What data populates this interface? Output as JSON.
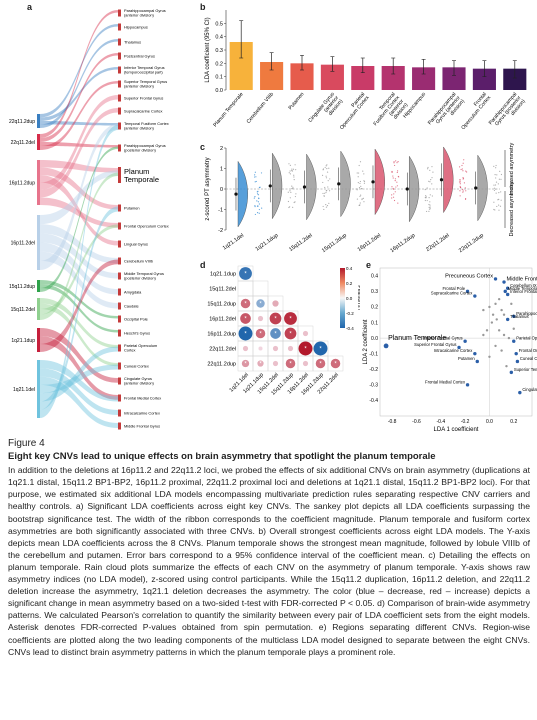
{
  "panels": {
    "a": "a",
    "b": "b",
    "c": "c",
    "d": "d",
    "e": "e"
  },
  "sankey": {
    "left_nodes": [
      {
        "label": "22q11.2dup",
        "color": "#3a7fc1",
        "y0": 114,
        "y1": 128
      },
      {
        "label": "22q11.2del",
        "color": "#d62d4a",
        "y0": 134,
        "y1": 150
      },
      {
        "label": "16p11.2dup",
        "color": "#e7748c",
        "y0": 160,
        "y1": 205
      },
      {
        "label": "16p11.2del",
        "color": "#b8d0e8",
        "y0": 215,
        "y1": 270
      },
      {
        "label": "15q11.2dup",
        "color": "#2ea24a",
        "y0": 280,
        "y1": 292
      },
      {
        "label": "15q11.2del",
        "color": "#8fd08f",
        "y0": 298,
        "y1": 320
      },
      {
        "label": "1q21.1dup",
        "color": "#c61f3c",
        "y0": 328,
        "y1": 352
      },
      {
        "label": "1q21.1del",
        "color": "#6fc3de",
        "y0": 360,
        "y1": 418
      }
    ],
    "right_nodes": [
      {
        "label": "Parahippocampal Gyrus (anterior division)",
        "y": 13,
        "big": false
      },
      {
        "label": "Hippocampus",
        "y": 27,
        "big": false
      },
      {
        "label": "Thalamus",
        "y": 42,
        "big": false
      },
      {
        "label": "Postcentral Gyrus",
        "y": 56,
        "big": false
      },
      {
        "label": "Inferior Temporal Gyrus (temporooccipital part)",
        "y": 70,
        "big": false
      },
      {
        "label": "Superior Temporal Gyrus (anterior division)",
        "y": 84,
        "big": false
      },
      {
        "label": "Superior Frontal Gyrus",
        "y": 98,
        "big": false
      },
      {
        "label": "Supracalcarine Cortex",
        "y": 111,
        "big": false
      },
      {
        "label": "Temporal Fusiform Cortex (anterior division)",
        "y": 126,
        "big": false
      },
      {
        "label": "Parahippocampal Gyrus (posterior division)",
        "y": 148,
        "big": false
      },
      {
        "label": "Planum Temporale",
        "y": 175,
        "big": true
      },
      {
        "label": "Putamen",
        "y": 208,
        "big": false
      },
      {
        "label": "Frontal Operculum Cortex",
        "y": 226,
        "big": false
      },
      {
        "label": "Lingual Gyrus",
        "y": 244,
        "big": false
      },
      {
        "label": "Cerebellum VIIIb",
        "y": 261,
        "big": false
      },
      {
        "label": "Middle Temporal Gyrus (posterior division)",
        "y": 276,
        "big": false
      },
      {
        "label": "Amygdala",
        "y": 292,
        "big": false
      },
      {
        "label": "Caudate",
        "y": 306,
        "big": false
      },
      {
        "label": "Occipital Pole",
        "y": 319,
        "big": false
      },
      {
        "label": "Heschl's Gyrus",
        "y": 333,
        "big": false
      },
      {
        "label": "Parietal Operculum Cortex",
        "y": 348,
        "big": false
      },
      {
        "label": "Cuneal Cortex",
        "y": 366,
        "big": false
      },
      {
        "label": "Cingulate Gyrus (anterior division)",
        "y": 381,
        "big": false
      },
      {
        "label": "Frontal Medial Cortex",
        "y": 398,
        "big": false
      },
      {
        "label": "Intracalcarine Cortex",
        "y": 413,
        "big": false
      },
      {
        "label": "Middle Frontal Gyrus",
        "y": 426,
        "big": false
      }
    ]
  },
  "bar_chart": {
    "chart_data": {
      "type": "bar",
      "ylabel": "LDA coefficient (95% CI)",
      "ylim": [
        0,
        0.6
      ],
      "yticks": [
        "0.0",
        "0.1",
        "0.2",
        "0.3",
        "0.4",
        "0.5"
      ],
      "categories": [
        "Planum Temporale",
        "Cerebellum VIIIb",
        "Putamen",
        "Cingulate Gyrus (anterior division)",
        "Parietal Operculum Cortex",
        "Temporal Fusiform Cortex (anterior division)",
        "Hippocampus",
        "Parahippocampal Gyrus (anterior division)",
        "Frontal Operculum Cortex",
        "Parahippocampal Gyrus (posterior division)"
      ],
      "values": [
        0.36,
        0.21,
        0.2,
        0.19,
        0.18,
        0.18,
        0.17,
        0.17,
        0.16,
        0.16
      ],
      "ci_low": [
        0.24,
        0.15,
        0.15,
        0.14,
        0.13,
        0.12,
        0.12,
        0.11,
        0.1,
        0.09
      ],
      "ci_high": [
        0.52,
        0.28,
        0.26,
        0.25,
        0.24,
        0.24,
        0.23,
        0.22,
        0.22,
        0.22
      ],
      "colors": [
        "#f7b23b",
        "#ef7a3f",
        "#e65c4c",
        "#d94a5e",
        "#c93b68",
        "#b4336e",
        "#9a2c72",
        "#7c2572",
        "#5b1e6a",
        "#2e154d"
      ]
    }
  },
  "rain_chart": {
    "chart_data": {
      "type": "scatter",
      "ylabel": "z-scored PT asymmetry",
      "ylim": [
        -2,
        2
      ],
      "yticks": [
        "-2",
        "-1",
        "0",
        "1",
        "2"
      ],
      "categories": [
        "1q21.1del",
        "1q21.1dup",
        "15q11.2del",
        "15q11.2dup",
        "16p11.2del",
        "16p11.2dup",
        "22q11.2del",
        "22q11.2dup"
      ],
      "means": [
        -0.25,
        0.15,
        0.1,
        0.25,
        0.35,
        0.0,
        0.45,
        0.05
      ],
      "highlight": [
        "#3a8ed4",
        "#9a9a9a",
        "#9a9a9a",
        "#9a9a9a",
        "#d9566e",
        "#9a9a9a",
        "#d9566e",
        "#9a9a9a"
      ],
      "increased_label": "Increased asymmetry",
      "decreased_label": "Decreased asymmetry"
    }
  },
  "corr_chart": {
    "chart_data": {
      "type": "heatmap",
      "labels": [
        "1q21.1dup",
        "15q11.2del",
        "15q11.2dup",
        "16p11.2del",
        "16p11.2dup",
        "22q11.2del",
        "22q11.2dup"
      ],
      "xlabels": [
        "1q21.1del",
        "1q21.1dup",
        "15q11.2del",
        "15q11.2dup",
        "16p11.2del",
        "16p11.2dup",
        "22q11.2del"
      ],
      "values": [
        [
          -0.45,
          null,
          null,
          null,
          null,
          null,
          null
        ],
        [
          null,
          null,
          null,
          null,
          null,
          null,
          null
        ],
        [
          0.3,
          -0.25,
          0.15,
          null,
          null,
          null,
          null
        ],
        [
          0.35,
          0.1,
          0.4,
          0.45,
          null,
          null,
          null
        ],
        [
          -0.5,
          0.3,
          -0.35,
          0.4,
          0.1,
          null,
          null
        ],
        [
          0.1,
          0.05,
          0.1,
          0.1,
          0.5,
          -0.5,
          null
        ],
        [
          0.2,
          0.15,
          0.1,
          0.3,
          0.1,
          0.3,
          0.3
        ]
      ],
      "stars": [
        [
          true,
          false,
          false,
          false,
          false,
          false,
          false
        ],
        [
          false,
          false,
          false,
          false,
          false,
          false,
          false
        ],
        [
          true,
          true,
          false,
          false,
          false,
          false,
          false
        ],
        [
          true,
          false,
          true,
          true,
          false,
          false,
          false
        ],
        [
          true,
          true,
          true,
          true,
          false,
          false,
          false
        ],
        [
          false,
          false,
          false,
          false,
          true,
          true,
          false
        ],
        [
          true,
          true,
          false,
          true,
          false,
          true,
          true
        ]
      ],
      "legend_title": "Pearson's r",
      "legend_ticks": [
        "0.4",
        "0.2",
        "0.0",
        "-0.2",
        "-0.4"
      ]
    }
  },
  "scatter_chart": {
    "chart_data": {
      "type": "scatter",
      "xlabel": "LDA 1 coefficient",
      "ylabel": "LDA 2 coefficient",
      "xlim": [
        -0.9,
        0.35
      ],
      "ylim": [
        -0.5,
        0.45
      ],
      "xticks": [
        "-0.8",
        "-0.6",
        "-0.4",
        "-0.2",
        "0.0",
        "0.2"
      ],
      "yticks": [
        "0.4",
        "0.3",
        "0.2",
        "0.1",
        "0.0",
        "-0.1",
        "-0.2",
        "-0.3",
        "-0.4"
      ],
      "points": [
        {
          "x": 0.05,
          "y": 0.38,
          "label": "Precuneous Cortex"
        },
        {
          "x": 0.12,
          "y": 0.36,
          "label": "Middle Frontal Gyrus"
        },
        {
          "x": 0.15,
          "y": 0.32,
          "label": "Cerebellum IX"
        },
        {
          "x": 0.13,
          "y": 0.3,
          "label": "Middle Temporal Gyrus"
        },
        {
          "x": 0.15,
          "y": 0.28,
          "label": "Inferior Frontal Gyrus"
        },
        {
          "x": -0.18,
          "y": 0.3,
          "label": "Frontal Pole"
        },
        {
          "x": -0.12,
          "y": 0.27,
          "label": "Supracalcarine Cortex"
        },
        {
          "x": 0.2,
          "y": 0.14,
          "label": "Parahippocampal Gyrus"
        },
        {
          "x": 0.15,
          "y": 0.12,
          "label": "Thalamus"
        },
        {
          "x": -0.2,
          "y": -0.02,
          "label": "Interior Frontal Gyrus"
        },
        {
          "x": -0.85,
          "y": -0.05,
          "label": "Planum Temporale"
        },
        {
          "x": -0.25,
          "y": -0.06,
          "label": "Superior Frontal Gyrus"
        },
        {
          "x": -0.12,
          "y": -0.1,
          "label": "Intracalcarine Cortex"
        },
        {
          "x": -0.1,
          "y": -0.15,
          "label": "Putamen"
        },
        {
          "x": 0.2,
          "y": -0.02,
          "label": "Parietal Operculum Cortex"
        },
        {
          "x": 0.22,
          "y": -0.1,
          "label": "Frontal Orbital Cortex"
        },
        {
          "x": 0.23,
          "y": -0.15,
          "label": "Cuneal Cortex"
        },
        {
          "x": 0.18,
          "y": -0.22,
          "label": "Superior Temporal Gyrus"
        },
        {
          "x": -0.18,
          "y": -0.3,
          "label": "Frontal Medial Cortex"
        },
        {
          "x": 0.25,
          "y": -0.35,
          "label": "Cingulate Gyrus"
        }
      ],
      "extra_points": [
        [
          0.0,
          0.2
        ],
        [
          0.05,
          0.22
        ],
        [
          0.1,
          0.18
        ],
        [
          0.02,
          0.1
        ],
        [
          0.08,
          0.05
        ],
        [
          0.12,
          0.02
        ],
        [
          -0.02,
          0.05
        ],
        [
          0.05,
          -0.05
        ],
        [
          0.1,
          -0.08
        ],
        [
          0.03,
          0.15
        ],
        [
          0.18,
          0.22
        ],
        [
          0.08,
          0.25
        ],
        [
          -0.05,
          0.18
        ],
        [
          0.14,
          -0.18
        ],
        [
          0.06,
          0.12
        ],
        [
          0.2,
          0.06
        ],
        [
          0.16,
          0.0
        ],
        [
          0.0,
          -0.12
        ],
        [
          0.12,
          0.15
        ],
        [
          -0.05,
          0.02
        ]
      ]
    }
  },
  "caption": {
    "label": "Figure 4",
    "title": "Eight key CNVs lead to unique effects on brain asymmetry that spotlight the planum temporale",
    "body": "In addition to the deletions at 16p11.2 and 22q11.2 loci, we probed the effects of six additional CNVs on brain asymmetry (duplications at 1q21.1 distal, 15q11.2 BP1-BP2, 16p11.2 proximal, 22q11.2 proximal loci and deletions at 1q21.1 distal, 15q11.2 BP1-BP2 loci). For that purpose, we estimated six additional LDA models encompassing multivariate prediction rules separating respective CNV carriers and healthy controls. a) Significant LDA coefficients across eight key CNVs. The sankey plot depicts all LDA coefficients surpassing the bootstrap significance test. The width of the ribbon corresponds to the coefficient magnitude. Planum temporale and fusiform cortex asymmetries are both significantly associated with three CNVs. b) Overall strongest coefficients across eight LDA models. The Y-axis depicts mean LDA coefficients across the 8 CNVs. Planum temporale shows the strongest mean magnitude, followed by lobule VIIIb of the cerebellum and putamen. Error bars correspond to a 95% confidence interval of the coefficient mean. c) Detailing the effects on planum temporale. Rain cloud plots summarize the effects of each CNV on the asymmetry of planum temporale. Y-axis shows raw asymmetry indices (no LDA model), z-scored using control participants. While the 15q11.2 duplication, 16p11.2 deletion, and 22q11.2 deletion increase the asymmetry, 1q21.1 deletion decreases the asymmetry. The color (blue – decrease, red – increase) depicts a significant change in mean asymmetry based on a two-sided t-test with FDR-corrected P < 0.05. d) Comparison of brain-wide asymmetry patterns. We calculated Pearson's correlation to quantify the similarity between every pair of LDA coefficient sets from the eight models. Asterisk denotes FDR-corrected P-values obtained from spin permutation. e) Regions separating different CNVs. Region-wise coefficients are plotted along the two leading components of the multiclass LDA model designed to separate between the eight CNVs. CNVs lead to distinct brain asymmetry patterns in which the planum temporale plays a prominent role."
  }
}
